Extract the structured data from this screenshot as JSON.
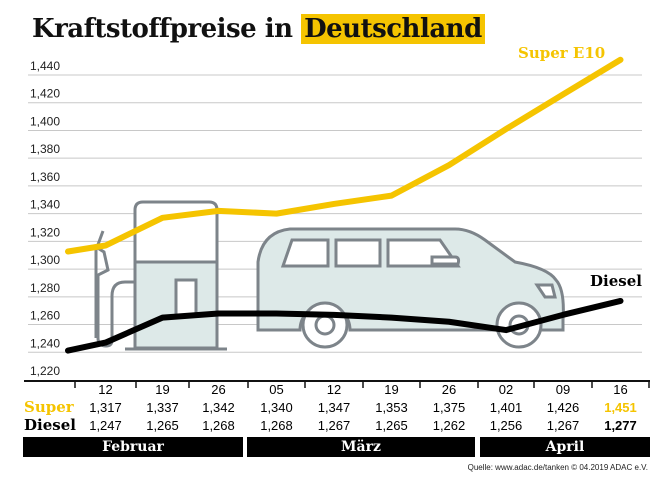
{
  "title_part1": "Kraftstoffpreise in",
  "title_part2": "Deutschland",
  "source": "Quelle: www.adac.de/tanken   © 04.2019  ADAC e.V.",
  "colors": {
    "super": "#f5c400",
    "diesel": "#000000",
    "illustration_fill": "#dde9e8",
    "illustration_stroke": "#7d848a"
  },
  "illustrations": [
    "fuel-pump",
    "car"
  ],
  "chart_data": {
    "type": "line",
    "title": "Kraftstoffpreise in Deutschland",
    "ylim": [
      1.22,
      1.44
    ],
    "yticks": [
      "1,440",
      "1,420",
      "1,400",
      "1,380",
      "1,360",
      "1,340",
      "1,320",
      "1,300",
      "1,280",
      "1,260",
      "1,240",
      "1,220"
    ],
    "ytick_values": [
      1.44,
      1.42,
      1.4,
      1.38,
      1.36,
      1.34,
      1.32,
      1.3,
      1.28,
      1.26,
      1.24,
      1.22
    ],
    "grid": true,
    "categories": [
      "12",
      "19",
      "26",
      "05",
      "12",
      "19",
      "26",
      "02",
      "09",
      "16"
    ],
    "months": [
      {
        "label": "Februar",
        "span": 3
      },
      {
        "label": "März",
        "span": 4
      },
      {
        "label": "April",
        "span": 3
      }
    ],
    "row_labels": {
      "super": "Super",
      "diesel": "Diesel"
    },
    "series": [
      {
        "name": "Super E10",
        "row_label": "Super",
        "values": [
          1.317,
          1.337,
          1.342,
          1.34,
          1.347,
          1.353,
          1.375,
          1.401,
          1.426,
          1.451
        ],
        "labels": [
          "1,317",
          "1,337",
          "1,342",
          "1,340",
          "1,347",
          "1,353",
          "1,375",
          "1,401",
          "1,426",
          "1,451"
        ]
      },
      {
        "name": "Diesel",
        "row_label": "Diesel",
        "values": [
          1.247,
          1.265,
          1.268,
          1.268,
          1.267,
          1.265,
          1.262,
          1.256,
          1.267,
          1.277
        ],
        "labels": [
          "1,247",
          "1,265",
          "1,268",
          "1,268",
          "1,267",
          "1,265",
          "1,262",
          "1,256",
          "1,267",
          "1,277"
        ]
      }
    ]
  }
}
